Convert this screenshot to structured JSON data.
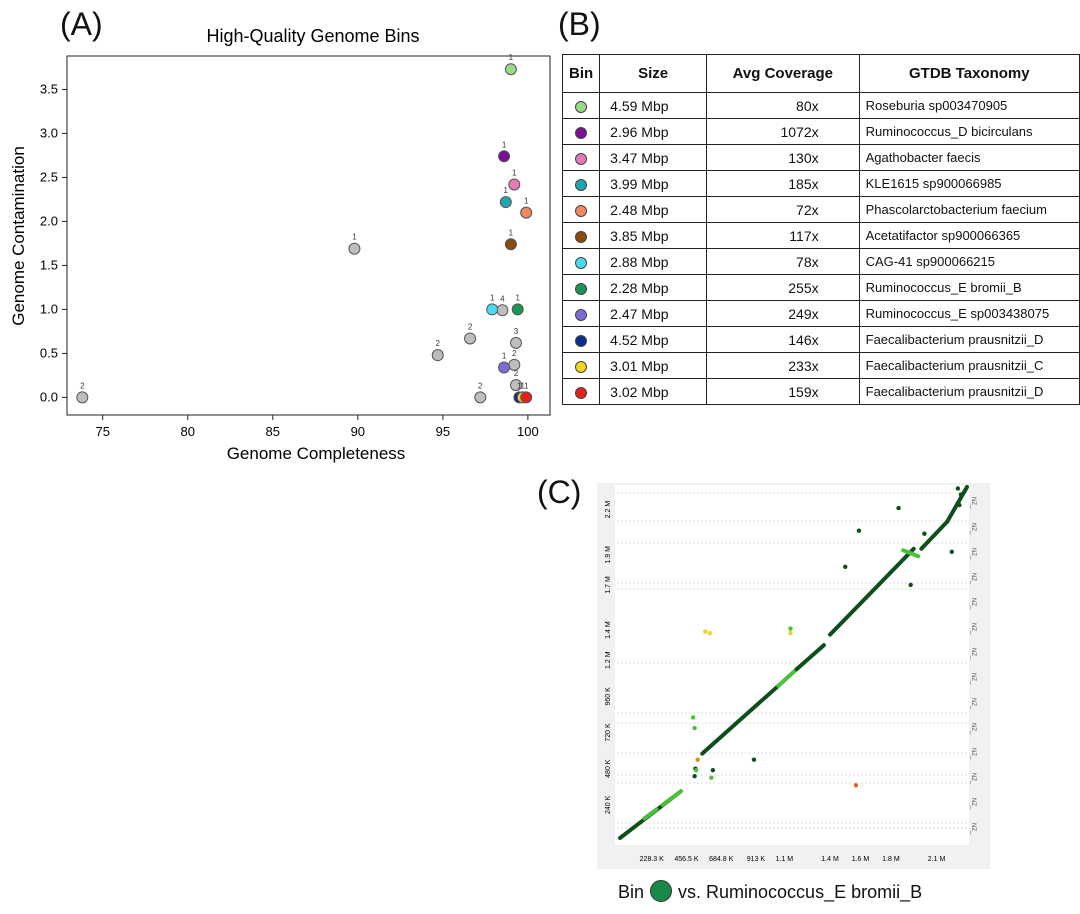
{
  "panels": {
    "a": "(A)",
    "b": "(B)",
    "c": "(C)"
  },
  "chart_data": [
    {
      "type": "scatter",
      "title": "High-Quality Genome Bins",
      "xlabel": "Genome Completeness",
      "ylabel": "Genome Contamination",
      "xlim": [
        72.9,
        101.3
      ],
      "ylim": [
        -0.2,
        3.88
      ],
      "xticks": [
        75,
        80,
        85,
        90,
        95,
        100
      ],
      "yticks": [
        0.0,
        0.5,
        1.0,
        1.5,
        2.0,
        2.5,
        3.0,
        3.5
      ],
      "ytick_labels": [
        "0.0",
        "0.5",
        "1.0",
        "1.5",
        "2.0",
        "2.5",
        "3.0",
        "3.5"
      ],
      "points": [
        {
          "x": 73.8,
          "y": 0.0,
          "label": "2",
          "color": "#bdbdbd"
        },
        {
          "x": 89.8,
          "y": 1.69,
          "label": "1",
          "color": "#bdbdbd"
        },
        {
          "x": 94.7,
          "y": 0.48,
          "label": "2",
          "color": "#bdbdbd"
        },
        {
          "x": 96.6,
          "y": 0.67,
          "label": "2",
          "color": "#bdbdbd"
        },
        {
          "x": 97.2,
          "y": 0.0,
          "label": "2",
          "color": "#bdbdbd"
        },
        {
          "x": 98.5,
          "y": 0.99,
          "label": "4",
          "color": "#bdbdbd"
        },
        {
          "x": 99.3,
          "y": 0.62,
          "label": "3",
          "color": "#bdbdbd"
        },
        {
          "x": 99.2,
          "y": 0.37,
          "label": "2",
          "color": "#bdbdbd"
        },
        {
          "x": 99.3,
          "y": 0.14,
          "label": "2",
          "color": "#bdbdbd"
        },
        {
          "x": 99.0,
          "y": 3.73,
          "label": "1",
          "color": "#98d98a"
        },
        {
          "x": 98.6,
          "y": 2.74,
          "label": "1",
          "color": "#7a0f99"
        },
        {
          "x": 99.2,
          "y": 2.42,
          "label": "1",
          "color": "#e07ab8"
        },
        {
          "x": 98.7,
          "y": 2.22,
          "label": "1",
          "color": "#21a3b2"
        },
        {
          "x": 99.9,
          "y": 2.1,
          "label": "1",
          "color": "#ee8a5e"
        },
        {
          "x": 99.0,
          "y": 1.74,
          "label": "1",
          "color": "#8b4b10"
        },
        {
          "x": 97.9,
          "y": 1.0,
          "label": "1",
          "color": "#49d9f0"
        },
        {
          "x": 99.4,
          "y": 1.0,
          "label": "1",
          "color": "#1b9456"
        },
        {
          "x": 98.6,
          "y": 0.34,
          "label": "1",
          "color": "#7d6bd6"
        },
        {
          "x": 99.5,
          "y": 0.0,
          "label": "1",
          "color": "#0d2a8e"
        },
        {
          "x": 99.7,
          "y": 0.0,
          "label": "1",
          "color": "#f2d320"
        },
        {
          "x": 99.9,
          "y": 0.0,
          "label": "1",
          "color": "#e3211c"
        }
      ]
    },
    {
      "type": "scatter",
      "title": "Bin vs. Ruminococcus_E bromii_B",
      "xticks": [
        228.3,
        456.5,
        684.8,
        913,
        1100,
        1400,
        1600,
        1800,
        2100
      ],
      "xtick_labels": [
        "228.3 K",
        "456.5 K",
        "684.8 K",
        "913 K",
        "1.1 M",
        "1.4 M",
        "1.6 M",
        "1.8 M",
        "2.1 M"
      ],
      "yticks": [
        240,
        480,
        720,
        960,
        1200,
        1400,
        1700,
        1900,
        2200
      ],
      "ytick_labels": [
        "240 K",
        "480 K",
        "720 K",
        "960 K",
        "1.2 M",
        "1.4 M",
        "1.7 M",
        "1.9 M",
        "2.2 M"
      ],
      "xlim": [
        0,
        2300
      ],
      "ylim": [
        0,
        2350
      ],
      "segments": [
        {
          "x0": 20,
          "y0": 20,
          "x1": 420,
          "y1": 330,
          "color": "#0d4f1a"
        },
        {
          "x0": 180,
          "y0": 150,
          "x1": 260,
          "y1": 210,
          "color": "#4cbf3a"
        },
        {
          "x0": 300,
          "y0": 240,
          "x1": 420,
          "y1": 330,
          "color": "#4cbf3a"
        },
        {
          "x0": 560,
          "y0": 580,
          "x1": 1060,
          "y1": 1030,
          "color": "#0d4f1a"
        },
        {
          "x0": 1060,
          "y0": 1030,
          "x1": 1180,
          "y1": 1140,
          "color": "#4cbf3a"
        },
        {
          "x0": 1180,
          "y0": 1140,
          "x1": 1360,
          "y1": 1300,
          "color": "#0d4f1a"
        },
        {
          "x0": 1400,
          "y0": 1370,
          "x1": 1950,
          "y1": 1940,
          "color": "#0d4f1a"
        },
        {
          "x0": 1880,
          "y0": 1930,
          "x1": 1980,
          "y1": 1890,
          "color": "#4cbf3a"
        },
        {
          "x0": 2000,
          "y0": 1940,
          "x1": 2170,
          "y1": 2120,
          "color": "#0d4f1a"
        },
        {
          "x0": 2170,
          "y0": 2120,
          "x1": 2300,
          "y1": 2350,
          "color": "#0d4f1a"
        }
      ],
      "dots": [
        {
          "x": 510,
          "y": 430,
          "color": "#0d4f1a"
        },
        {
          "x": 515,
          "y": 480,
          "color": "#0d4f1a"
        },
        {
          "x": 520,
          "y": 470,
          "color": "#4cbf3a"
        },
        {
          "x": 500,
          "y": 820,
          "color": "#4cbf3a"
        },
        {
          "x": 510,
          "y": 750,
          "color": "#4cbf3a"
        },
        {
          "x": 530,
          "y": 540,
          "color": "#d98a1a"
        },
        {
          "x": 580,
          "y": 1390,
          "color": "#f2d320"
        },
        {
          "x": 610,
          "y": 1380,
          "color": "#f2d320"
        },
        {
          "x": 620,
          "y": 420,
          "color": "#4cbf3a"
        },
        {
          "x": 630,
          "y": 470,
          "color": "#0d4f1a"
        },
        {
          "x": 900,
          "y": 540,
          "color": "#0d4f1a"
        },
        {
          "x": 1140,
          "y": 1410,
          "color": "#4cbf3a"
        },
        {
          "x": 1140,
          "y": 1380,
          "color": "#f2d320"
        },
        {
          "x": 1500,
          "y": 1820,
          "color": "#0d4f1a"
        },
        {
          "x": 1590,
          "y": 2060,
          "color": "#0d4f1a"
        },
        {
          "x": 1570,
          "y": 370,
          "color": "#e0621c"
        },
        {
          "x": 1850,
          "y": 2210,
          "color": "#0d4f1a"
        },
        {
          "x": 1930,
          "y": 1700,
          "color": "#0d4f1a"
        },
        {
          "x": 2020,
          "y": 2040,
          "color": "#0d4f1a"
        },
        {
          "x": 2200,
          "y": 1920,
          "color": "#0d4f1a"
        },
        {
          "x": 2250,
          "y": 2230,
          "color": "#0d4f1a"
        },
        {
          "x": 2240,
          "y": 2340,
          "color": "#0d4f1a"
        },
        {
          "x": 2260,
          "y": 2300,
          "color": "#0d4f1a"
        }
      ]
    }
  ],
  "table": {
    "headers": [
      "Bin",
      "Size",
      "Avg Coverage",
      "GTDB Taxonomy"
    ],
    "rows": [
      {
        "color": "#98d98a",
        "size": "4.59 Mbp",
        "coverage": "80x",
        "taxonomy": "Roseburia sp003470905"
      },
      {
        "color": "#7a0f99",
        "size": "2.96 Mbp",
        "coverage": "1072x",
        "taxonomy": "Ruminococcus_D bicirculans"
      },
      {
        "color": "#e07ab8",
        "size": "3.47 Mbp",
        "coverage": "130x",
        "taxonomy": "Agathobacter faecis"
      },
      {
        "color": "#21a3b2",
        "size": "3.99 Mbp",
        "coverage": "185x",
        "taxonomy": "KLE1615 sp900066985"
      },
      {
        "color": "#ee8a5e",
        "size": "2.48 Mbp",
        "coverage": "72x",
        "taxonomy": "Phascolarctobacterium faecium"
      },
      {
        "color": "#8b4b10",
        "size": "3.85 Mbp",
        "coverage": "117x",
        "taxonomy": "Acetatifactor sp900066365"
      },
      {
        "color": "#49d9f0",
        "size": "2.88 Mbp",
        "coverage": "78x",
        "taxonomy": "CAG-41 sp900066215"
      },
      {
        "color": "#1b9456",
        "size": "2.28 Mbp",
        "coverage": "255x",
        "taxonomy": "Ruminococcus_E bromii_B"
      },
      {
        "color": "#7d6bd6",
        "size": "2.47 Mbp",
        "coverage": "249x",
        "taxonomy": "Ruminococcus_E sp003438075"
      },
      {
        "color": "#0d2a8e",
        "size": "4.52 Mbp",
        "coverage": "146x",
        "taxonomy": "Faecalibacterium prausnitzii_D"
      },
      {
        "color": "#f2d320",
        "size": "3.01 Mbp",
        "coverage": "233x",
        "taxonomy": "Faecalibacterium prausnitzii_C"
      },
      {
        "color": "#e3211c",
        "size": "3.02 Mbp",
        "coverage": "159x",
        "taxonomy": "Faecalibacterium prausnitzii_D"
      }
    ]
  },
  "caption": {
    "prefix": "Bin",
    "suffix": "vs. Ruminococcus_E bromii_B",
    "dot_color": "#178a4a"
  },
  "dotplot_side_label": "NZ_"
}
